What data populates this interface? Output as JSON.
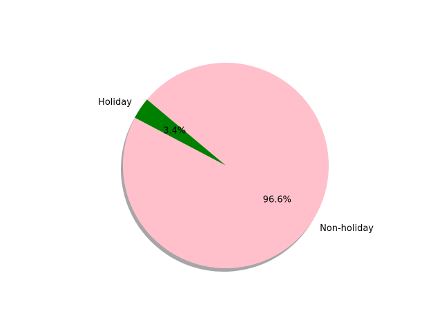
{
  "chart_data": {
    "type": "pie",
    "title": "",
    "start_angle_deg": 140,
    "counterclockwise": true,
    "shadow": true,
    "legend": "none",
    "slices": [
      {
        "label": "Holiday",
        "value": 3.4,
        "pct_label": "3.4%",
        "color": "#008000"
      },
      {
        "label": "Non-holiday",
        "value": 96.6,
        "pct_label": "96.6%",
        "color": "#ffc0cb"
      }
    ]
  }
}
